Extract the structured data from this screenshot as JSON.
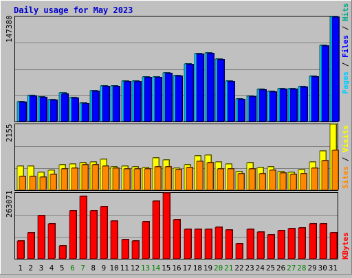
{
  "chart_data": [
    {
      "type": "bar",
      "title": "Daily usage for May 2023",
      "categories": [
        "1",
        "2",
        "3",
        "4",
        "5",
        "6",
        "7",
        "8",
        "9",
        "10",
        "11",
        "12",
        "13",
        "14",
        "15",
        "16",
        "17",
        "18",
        "19",
        "20",
        "21",
        "22",
        "23",
        "24",
        "25",
        "26",
        "27",
        "28",
        "29",
        "30",
        "31"
      ],
      "weekend_days": [
        "6",
        "7",
        "13",
        "14",
        "20",
        "21",
        "27",
        "28"
      ],
      "ylim": [
        0,
        147380
      ],
      "ytick_label": "147380",
      "right_label_parts": [
        "Pages",
        " / ",
        "Files",
        " / ",
        "Hits"
      ],
      "series": [
        {
          "name": "Hits",
          "color": "#00ccff",
          "values": [
            28000,
            37000,
            35000,
            31000,
            40000,
            34000,
            26000,
            43000,
            50000,
            50000,
            57000,
            57000,
            63000,
            63000,
            68000,
            65000,
            81000,
            95000,
            96000,
            88000,
            57000,
            32000,
            36000,
            45000,
            42000,
            46000,
            46000,
            49000,
            64000,
            107000,
            147380
          ]
        },
        {
          "name": "Files",
          "color": "#0000ff",
          "values": [
            27000,
            36000,
            34000,
            30000,
            39000,
            33000,
            25000,
            42000,
            49000,
            49000,
            56000,
            56000,
            62000,
            62000,
            67000,
            64000,
            80000,
            94000,
            95000,
            87000,
            56000,
            31000,
            35000,
            44000,
            41000,
            45000,
            45000,
            48000,
            63000,
            106000,
            146000
          ]
        }
      ]
    },
    {
      "type": "bar",
      "ylim": [
        0,
        2155
      ],
      "ytick_label": "2155",
      "right_label_parts": [
        "Sites",
        " / ",
        "Visits"
      ],
      "series": [
        {
          "name": "Visits",
          "color": "#ffff00",
          "values": [
            780,
            780,
            580,
            640,
            820,
            860,
            900,
            920,
            1020,
            760,
            790,
            760,
            730,
            1060,
            980,
            720,
            820,
            1120,
            1140,
            920,
            850,
            600,
            890,
            730,
            770,
            600,
            580,
            670,
            920,
            1290,
            2155
          ]
        },
        {
          "name": "Sites",
          "color": "#ff8800",
          "values": [
            460,
            440,
            420,
            510,
            700,
            720,
            830,
            820,
            790,
            720,
            690,
            690,
            700,
            770,
            770,
            670,
            730,
            950,
            890,
            700,
            700,
            530,
            700,
            530,
            660,
            570,
            520,
            540,
            720,
            960,
            1300
          ]
        }
      ]
    },
    {
      "type": "bar",
      "ylim": [
        0,
        263071
      ],
      "ytick_label": "263071",
      "right_label_parts": [
        "KBytes"
      ],
      "series": [
        {
          "name": "KBytes",
          "color": "#ff0000",
          "values": [
            70000,
            103000,
            172000,
            139000,
            53000,
            192000,
            248000,
            192000,
            208000,
            151000,
            76000,
            72000,
            149000,
            231000,
            263071,
            156000,
            118000,
            119000,
            118000,
            126000,
            116000,
            61000,
            117000,
            107000,
            95000,
            113000,
            121000,
            124000,
            141000,
            139000,
            103000
          ]
        }
      ]
    }
  ]
}
